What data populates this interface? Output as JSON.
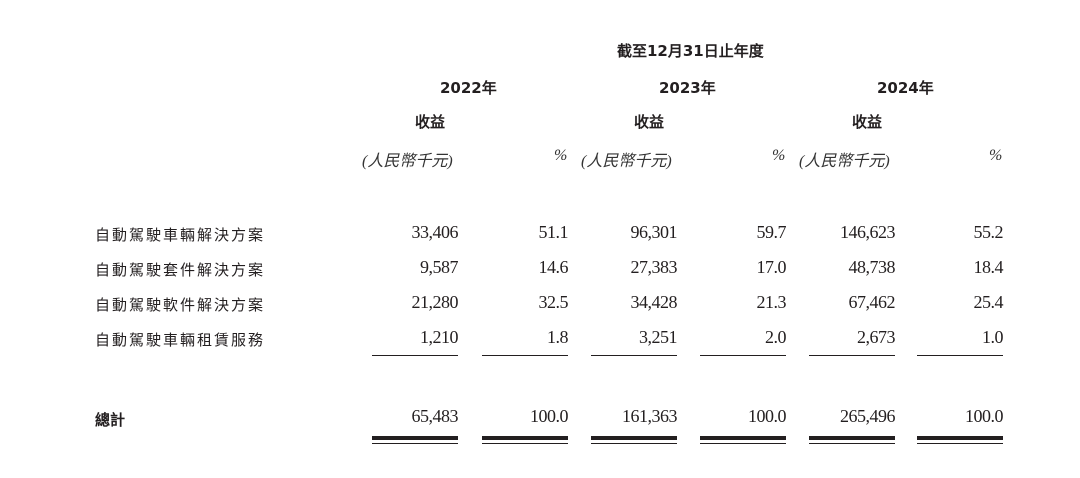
{
  "header": {
    "period": "截至12月31日止年度",
    "years": [
      "2022年",
      "2023年",
      "2024年"
    ],
    "revenue_label": "收益",
    "unit_label": "(人民幣千元)",
    "percent_label": "%"
  },
  "rows": [
    {
      "label": "自動駕駛車輛解決方案",
      "values": [
        "33,406",
        "51.1",
        "96,301",
        "59.7",
        "146,623",
        "55.2"
      ]
    },
    {
      "label": "自動駕駛套件解決方案",
      "values": [
        "9,587",
        "14.6",
        "27,383",
        "17.0",
        "48,738",
        "18.4"
      ]
    },
    {
      "label": "自動駕駛軟件解決方案",
      "values": [
        "21,280",
        "32.5",
        "34,428",
        "21.3",
        "67,462",
        "25.4"
      ]
    },
    {
      "label": "自動駕駛車輛租賃服務",
      "values": [
        "1,210",
        "1.8",
        "3,251",
        "2.0",
        "2,673",
        "1.0"
      ]
    }
  ],
  "total": {
    "label": "總計",
    "values": [
      "65,483",
      "100.0",
      "161,363",
      "100.0",
      "265,496",
      "100.0"
    ]
  }
}
